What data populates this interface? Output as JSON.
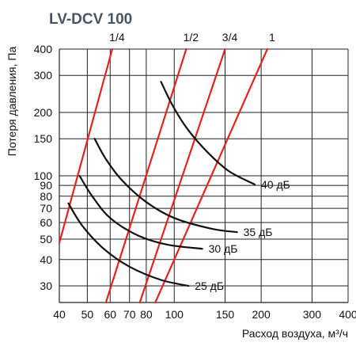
{
  "chart_data": {
    "type": "line",
    "title": "LV-DCV 100",
    "xlabel": "Расход воздуха, м³/ч",
    "ylabel": "Потеря давления, Па",
    "x_scale": "log",
    "y_scale": "log",
    "xlim": [
      40,
      400
    ],
    "ylim": [
      25,
      400
    ],
    "x_ticks": [
      40,
      50,
      60,
      70,
      80,
      100,
      150,
      200,
      300,
      400
    ],
    "y_ticks": [
      30,
      40,
      50,
      60,
      70,
      80,
      90,
      100,
      150,
      200,
      300,
      400
    ],
    "grid": true,
    "series_color_opening": "#e3241b",
    "series_color_noise": "#111111",
    "grid_color": "#222222",
    "series": [
      {
        "name": "1/4",
        "kind": "damper-opening",
        "x": [
          40,
          61
        ],
        "y": [
          48,
          400
        ]
      },
      {
        "name": "1/2",
        "kind": "damper-opening",
        "x": [
          58,
          110
        ],
        "y": [
          25,
          400
        ]
      },
      {
        "name": "3/4",
        "kind": "damper-opening",
        "x": [
          76,
          150
        ],
        "y": [
          25,
          400
        ]
      },
      {
        "name": "1",
        "kind": "damper-opening",
        "x": [
          86,
          210
        ],
        "y": [
          25,
          400
        ]
      },
      {
        "name": "40 дБ",
        "kind": "noise",
        "x": [
          90,
          98,
          110,
          130,
          155,
          190
        ],
        "y": [
          280,
          220,
          170,
          130,
          105,
          91
        ]
      },
      {
        "name": "35 дБ",
        "kind": "noise",
        "x": [
          53,
          58,
          66,
          80,
          100,
          135,
          165
        ],
        "y": [
          150,
          120,
          95,
          75,
          63,
          56,
          54
        ]
      },
      {
        "name": "30 дБ",
        "kind": "noise",
        "x": [
          47,
          52,
          60,
          75,
          95,
          125
        ],
        "y": [
          100,
          80,
          63,
          52,
          47,
          45
        ]
      },
      {
        "name": "25 дБ",
        "kind": "noise",
        "x": [
          43,
          48,
          57,
          70,
          90,
          112
        ],
        "y": [
          74,
          58,
          45,
          37,
          32,
          30
        ]
      }
    ]
  }
}
